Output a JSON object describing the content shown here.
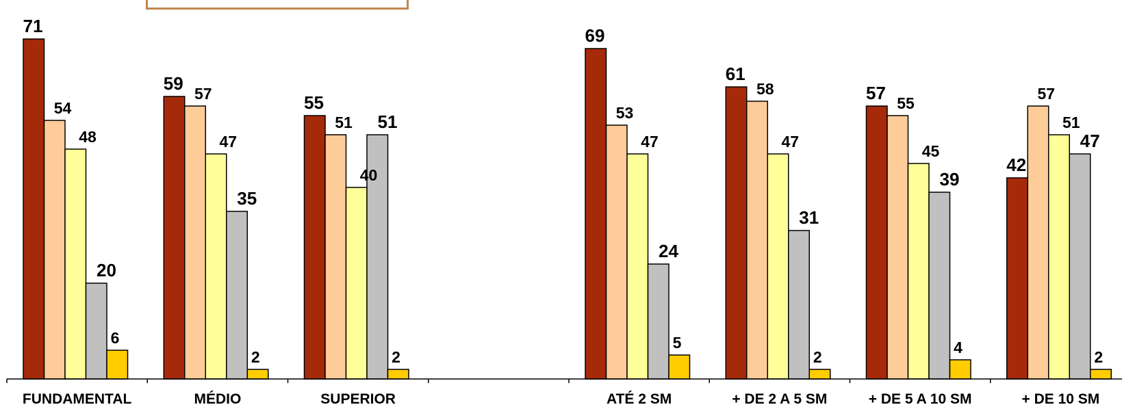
{
  "chart_data": {
    "type": "bar",
    "title": "",
    "xlabel": "",
    "ylabel": "",
    "ylim": [
      0,
      75
    ],
    "grid": false,
    "legend": "top (partially cropped)",
    "categories": [
      "FUNDAMENTAL",
      "MÉDIO",
      "SUPERIOR",
      "",
      "ATÉ 2 SM",
      "+ DE 2 A 5 SM",
      "+ DE 5 A 10 SM",
      "+ DE 10 SM"
    ],
    "series": [
      {
        "color": "#a52a0a",
        "values": [
          71,
          59,
          55,
          null,
          69,
          61,
          57,
          42
        ]
      },
      {
        "color": "#fdcc99",
        "values": [
          54,
          57,
          51,
          null,
          53,
          58,
          55,
          57
        ]
      },
      {
        "color": "#ffff99",
        "values": [
          48,
          47,
          40,
          null,
          47,
          47,
          45,
          51
        ]
      },
      {
        "color": "#c0c0c0",
        "values": [
          20,
          35,
          51,
          null,
          24,
          31,
          39,
          47
        ]
      },
      {
        "color": "#ffcc00",
        "values": [
          6,
          2,
          2,
          null,
          5,
          2,
          4,
          2
        ]
      }
    ]
  }
}
